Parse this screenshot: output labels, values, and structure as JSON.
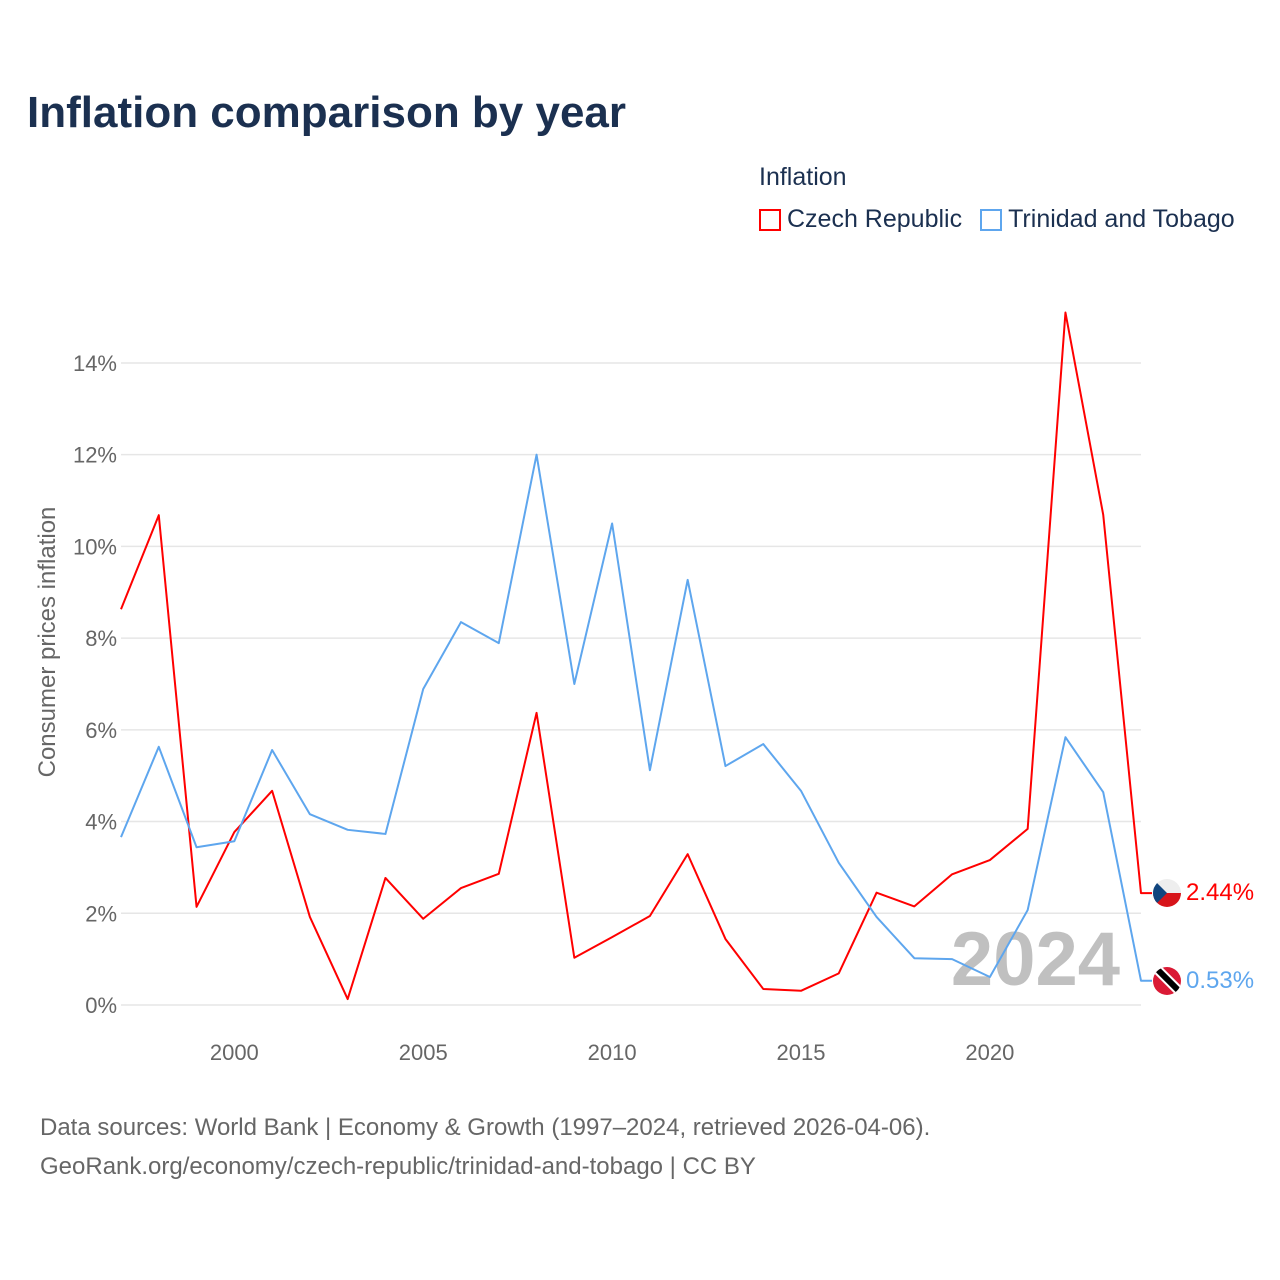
{
  "title": "Inflation comparison by year",
  "legend_title": "Inflation",
  "footer": {
    "line1": "Data sources: World Bank | Economy & Growth (1997–2024, retrieved 2026-04-06).",
    "line2": "GeoRank.org/economy/czech-republic/trinidad-and-tobago | CC BY"
  },
  "chart_data": {
    "type": "line",
    "title": "Inflation comparison by year",
    "xlabel": "",
    "ylabel": "Consumer prices inflation",
    "x": [
      1997,
      1998,
      1999,
      2000,
      2001,
      2002,
      2003,
      2004,
      2005,
      2006,
      2007,
      2008,
      2009,
      2010,
      2011,
      2012,
      2013,
      2014,
      2015,
      2016,
      2017,
      2018,
      2019,
      2020,
      2021,
      2022,
      2023,
      2024
    ],
    "xlim": [
      1997,
      2024
    ],
    "ylim": [
      0,
      15
    ],
    "x_ticks": [
      2000,
      2005,
      2010,
      2015,
      2020
    ],
    "y_ticks": [
      0,
      2,
      4,
      6,
      8,
      10,
      12,
      14
    ],
    "y_tick_labels": [
      "0%",
      "2%",
      "4%",
      "6%",
      "8%",
      "10%",
      "12%",
      "14%"
    ],
    "grid": true,
    "legend_position": "top-right",
    "watermark_year": "2024",
    "series": [
      {
        "name": "Czech Republic",
        "color": "#ff0000",
        "end_label": "2.44%",
        "flag": "czech-flag",
        "values": [
          8.63,
          10.68,
          2.14,
          3.77,
          4.67,
          1.92,
          0.13,
          2.77,
          1.88,
          2.55,
          2.86,
          6.37,
          1.03,
          1.48,
          1.94,
          3.29,
          1.44,
          0.35,
          0.31,
          0.69,
          2.45,
          2.15,
          2.85,
          3.16,
          3.84,
          15.1,
          10.69,
          2.44
        ]
      },
      {
        "name": "Trinidad and Tobago",
        "color": "#5ea6ee",
        "end_label": "0.53%",
        "flag": "trinidad-flag",
        "values": [
          3.66,
          5.63,
          3.44,
          3.57,
          5.56,
          4.16,
          3.82,
          3.73,
          6.89,
          8.35,
          7.89,
          12.0,
          7.0,
          10.5,
          5.12,
          9.27,
          5.21,
          5.69,
          4.67,
          3.1,
          1.92,
          1.02,
          1.0,
          0.61,
          2.07,
          5.84,
          4.64,
          0.53
        ]
      }
    ]
  }
}
